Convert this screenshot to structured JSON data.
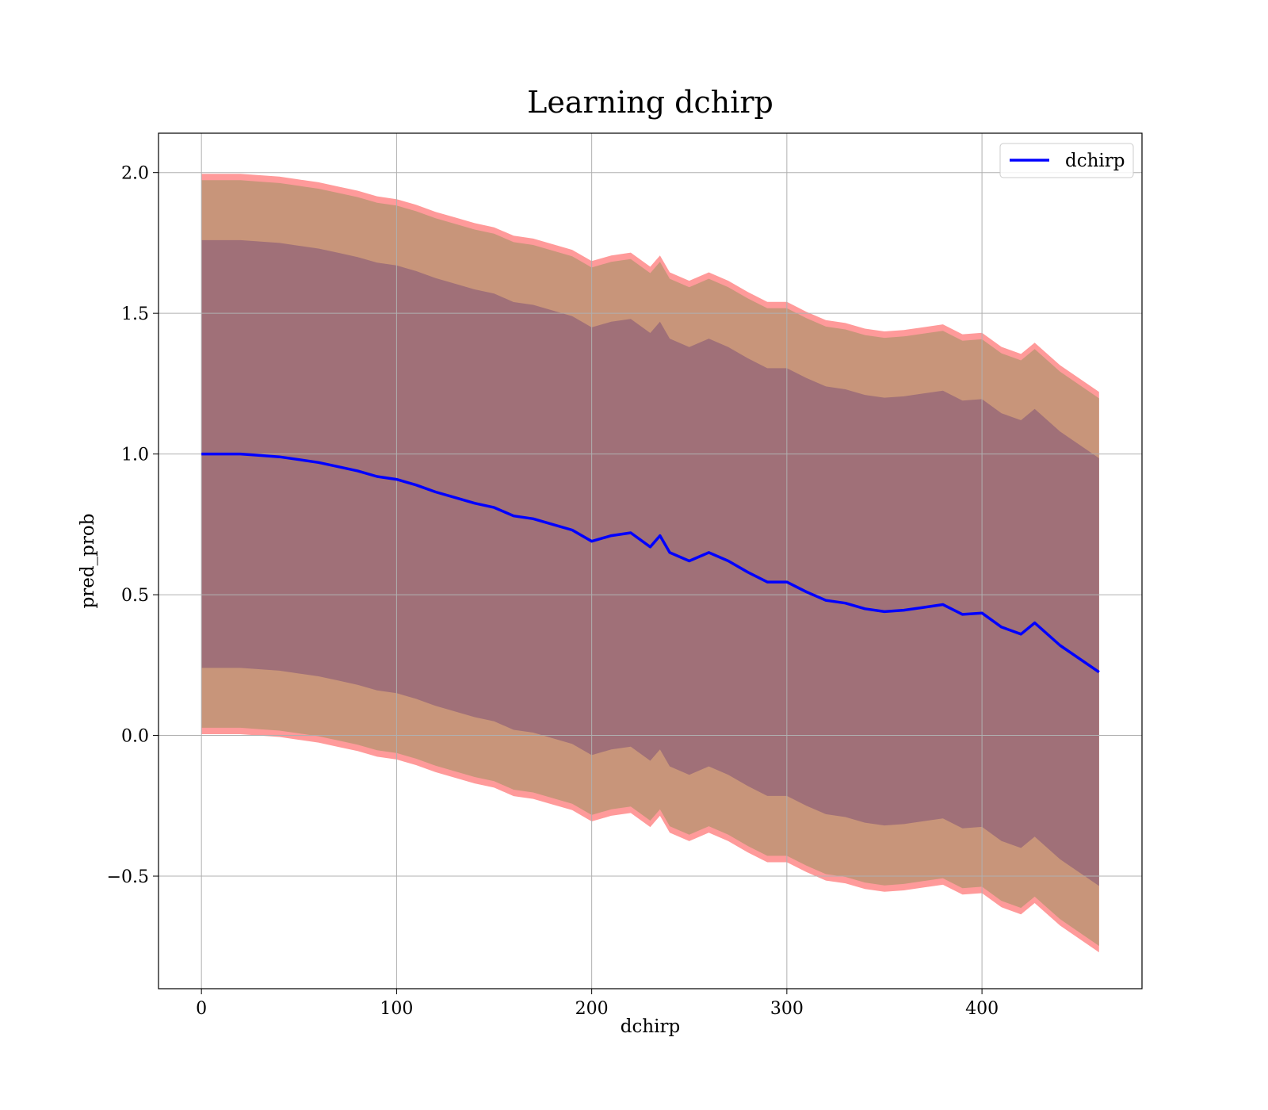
{
  "chart_data": {
    "type": "line",
    "title": "Learning dchirp",
    "xlabel": "dchirp",
    "ylabel": "pred_prob",
    "xlim": [
      -22,
      482
    ],
    "ylim": [
      -0.9,
      2.14
    ],
    "xticks": [
      0,
      100,
      200,
      300,
      400
    ],
    "xtick_labels": [
      "0",
      "100",
      "200",
      "300",
      "400"
    ],
    "yticks": [
      -0.5,
      0.0,
      0.5,
      1.0,
      1.5,
      2.0
    ],
    "ytick_labels": [
      "−0.5",
      "0.0",
      "0.5",
      "1.0",
      "1.5",
      "2.0"
    ],
    "grid": true,
    "legend": {
      "position": "top-right",
      "entries": [
        "dchirp"
      ]
    },
    "colors": {
      "line": "#0000ff",
      "band_outer": "#ff9a9a",
      "band_middle": "#c8957a",
      "band_inner": "#a07078",
      "grid": "#b0b0b0"
    },
    "series": [
      {
        "name": "dchirp",
        "x": [
          0,
          10,
          20,
          30,
          40,
          50,
          60,
          70,
          80,
          90,
          100,
          110,
          120,
          130,
          140,
          150,
          160,
          170,
          180,
          190,
          200,
          210,
          220,
          230,
          235,
          240,
          250,
          260,
          270,
          280,
          290,
          300,
          310,
          320,
          330,
          340,
          350,
          360,
          370,
          380,
          390,
          400,
          410,
          420,
          427,
          440,
          460
        ],
        "y": [
          1.0,
          1.0,
          1.0,
          0.995,
          0.99,
          0.98,
          0.97,
          0.955,
          0.94,
          0.92,
          0.91,
          0.89,
          0.865,
          0.845,
          0.825,
          0.81,
          0.78,
          0.77,
          0.75,
          0.73,
          0.69,
          0.71,
          0.72,
          0.67,
          0.71,
          0.65,
          0.62,
          0.65,
          0.62,
          0.58,
          0.545,
          0.545,
          0.51,
          0.48,
          0.47,
          0.45,
          0.44,
          0.445,
          0.455,
          0.465,
          0.43,
          0.435,
          0.385,
          0.36,
          0.4,
          0.32,
          0.225
        ],
        "std": [
          0.76,
          0.76,
          0.76,
          0.76,
          0.76,
          0.76,
          0.76,
          0.76,
          0.76,
          0.76,
          0.76,
          0.76,
          0.76,
          0.76,
          0.76,
          0.76,
          0.76,
          0.76,
          0.76,
          0.76,
          0.76,
          0.76,
          0.76,
          0.76,
          0.76,
          0.76,
          0.76,
          0.76,
          0.76,
          0.76,
          0.76,
          0.76,
          0.76,
          0.76,
          0.76,
          0.76,
          0.76,
          0.76,
          0.76,
          0.76,
          0.76,
          0.76,
          0.76,
          0.76,
          0.76,
          0.76,
          0.76
        ]
      }
    ]
  }
}
